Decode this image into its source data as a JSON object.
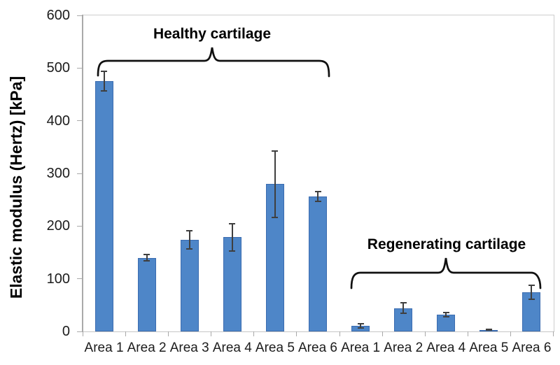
{
  "chart_data": {
    "type": "bar",
    "title": "",
    "ylabel": "Elastic modulus (Hertz) [kPa]",
    "xlabel": "",
    "ylim": [
      0,
      600
    ],
    "yticks": [
      0,
      100,
      200,
      300,
      400,
      500,
      600
    ],
    "grid": false,
    "legend": false,
    "bar_color": "#4e86c8",
    "bar_border_color": "#3b6cb0",
    "error_bar_color": "#3f3f3f",
    "axis_color": "#a9a9a9",
    "groups": [
      {
        "id": "healthy",
        "label": "Healthy cartilage",
        "categories": [
          "Area 1",
          "Area 2",
          "Area 3",
          "Area 4",
          "Area 5",
          "Area 6"
        ],
        "values": [
          475,
          140,
          174,
          179,
          280,
          256
        ],
        "errors": [
          19,
          6,
          17,
          26,
          63,
          9
        ]
      },
      {
        "id": "regenerating",
        "label": "Regenerating cartilage",
        "categories": [
          "Area 1",
          "Area 2",
          "Area 4",
          "Area 5",
          "Area 6"
        ],
        "values": [
          11,
          44,
          32,
          3,
          74
        ],
        "errors": [
          4,
          10,
          4,
          1,
          13
        ]
      }
    ]
  }
}
